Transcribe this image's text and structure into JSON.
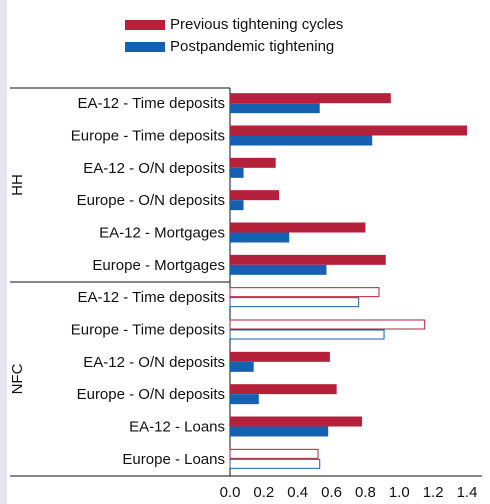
{
  "chart_data": {
    "type": "bar",
    "orientation": "horizontal",
    "groups": [
      {
        "name": "HH",
        "categories": [
          "EA-12 - Time deposits",
          "Europe - Time deposits",
          "EA-12 - O/N deposits",
          "Europe - O/N deposits",
          "EA-12 - Mortgages",
          "Europe - Mortgages"
        ]
      },
      {
        "name": "NFC",
        "categories": [
          "EA-12 - Time deposits",
          "Europe - Time deposits",
          "EA-12 - O/N deposits",
          "Europe - O/N deposits",
          "EA-12 - Loans",
          "Europe - Loans"
        ]
      }
    ],
    "series": [
      {
        "name": "Previous tightening cycles",
        "color": "#b5203a",
        "values": [
          0.95,
          1.4,
          0.27,
          0.29,
          0.8,
          0.92,
          0.88,
          1.15,
          0.59,
          0.63,
          0.78,
          0.52
        ],
        "styles": [
          "solid",
          "solid",
          "solid",
          "solid",
          "solid",
          "solid",
          "outline",
          "outline",
          "solid",
          "solid",
          "solid",
          "outline"
        ]
      },
      {
        "name": "Postpandemic tightening",
        "color": "#1560b0",
        "values": [
          0.53,
          0.84,
          0.08,
          0.08,
          0.35,
          0.57,
          0.76,
          0.91,
          0.14,
          0.17,
          0.58,
          0.53
        ],
        "styles": [
          "solid",
          "solid",
          "solid",
          "solid",
          "solid",
          "solid",
          "outline",
          "outline",
          "solid",
          "solid",
          "solid",
          "outline"
        ]
      }
    ],
    "xlim": [
      0,
      1.4
    ],
    "xticks": [
      {
        "value": 0,
        "label": "0.0"
      },
      0.2,
      0.4,
      0.6,
      0.8,
      {
        "value": 1,
        "label": "1.0"
      },
      1.2,
      1.4
    ]
  }
}
